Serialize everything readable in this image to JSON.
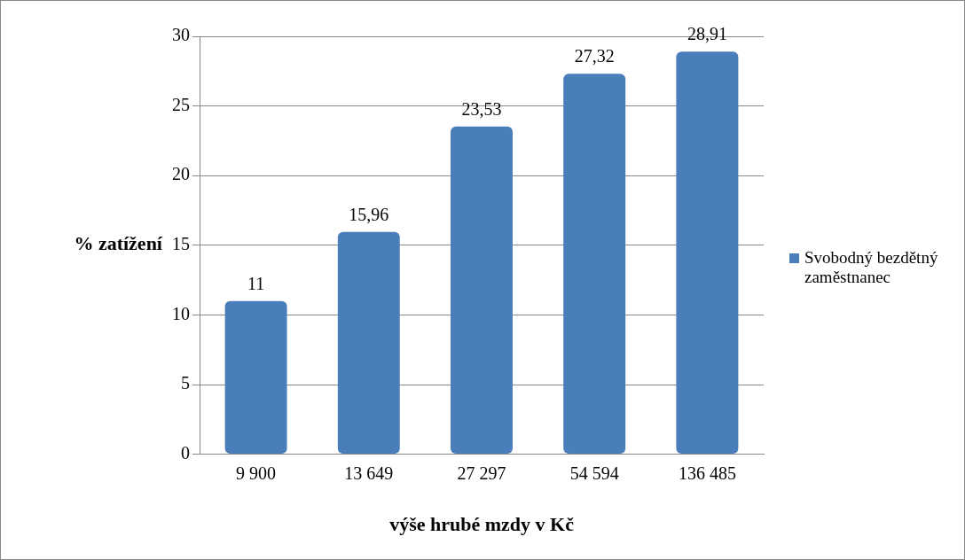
{
  "chart_data": {
    "type": "bar",
    "xlabel": "výše hrubé mzdy v Kč",
    "ylabel": "% zatížení",
    "categories": [
      "9 900",
      "13 649",
      "27 297",
      "54 594",
      "136 485"
    ],
    "series": [
      {
        "name": "Svobodný bezdětný zaměstnanec",
        "color": "#4a7ebb",
        "values": [
          11,
          15.96,
          23.53,
          27.32,
          28.91
        ],
        "value_labels": [
          "11",
          "15,96",
          "23,53",
          "27,32",
          "28,91"
        ]
      }
    ],
    "ylim": [
      0,
      30
    ],
    "yticks": [
      0,
      5,
      10,
      15,
      20,
      25,
      30
    ],
    "grid": "y",
    "legend": "right"
  }
}
